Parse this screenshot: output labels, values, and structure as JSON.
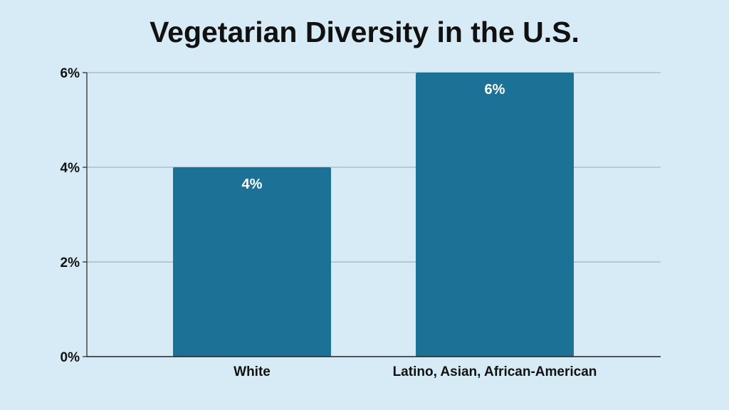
{
  "chart_data": {
    "type": "bar",
    "title": "Vegetarian Diversity in the U.S.",
    "xlabel": "",
    "ylabel": "",
    "categories": [
      "White",
      "Latino, Asian, African-American"
    ],
    "values": [
      4,
      6
    ],
    "data_labels": [
      "4%",
      "6%"
    ],
    "y_ticks": [
      0,
      2,
      4,
      6
    ],
    "y_tick_labels": [
      "0%",
      "2%",
      "4%",
      "6%"
    ],
    "ylim": [
      0,
      6
    ],
    "grid": true,
    "legend": "none",
    "colors": {
      "bar": "#1b7196",
      "background": "#d6ebf5",
      "grid": "#9fb5c0",
      "axis": "#222222"
    }
  }
}
